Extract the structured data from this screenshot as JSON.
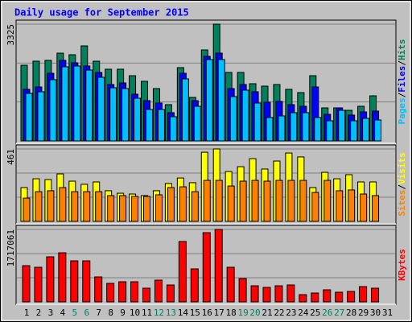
{
  "chart_data": [
    {
      "type": "bar",
      "title": "Daily usage for September 2015",
      "ylim": [
        0,
        3325
      ],
      "yticks": [
        3325
      ],
      "grid_divisions": 3,
      "legend_separator": "/",
      "series": [
        {
          "name": "Hits",
          "color": "#00805c",
          "values": [
            2155,
            2270,
            2293,
            2499,
            2454,
            2706,
            2270,
            2041,
            2041,
            1857,
            1697,
            1490,
            1032,
            2087,
            1238,
            2591,
            3325,
            1949,
            1949,
            1628,
            1559,
            1605,
            1468,
            1376,
            1857,
            940,
            940,
            871,
            986,
            1284,
            0
          ]
        },
        {
          "name": "Files",
          "color": "#0000ff",
          "values": [
            1468,
            1536,
            1926,
            2293,
            2224,
            2132,
            1949,
            1605,
            1651,
            1330,
            1146,
            1078,
            803,
            1926,
            1146,
            2408,
            2499,
            1490,
            1605,
            1399,
            1101,
            1124,
            1032,
            986,
            1536,
            757,
            940,
            734,
            825,
            848,
            0
          ]
        },
        {
          "name": "Pages",
          "color": "#00c0ff",
          "values": [
            1353,
            1399,
            1743,
            2110,
            2132,
            2018,
            1811,
            1513,
            1490,
            1215,
            894,
            894,
            688,
            1766,
            986,
            2316,
            2316,
            1261,
            1445,
            1078,
            665,
            711,
            803,
            803,
            665,
            573,
            871,
            573,
            642,
            596,
            0
          ]
        }
      ]
    },
    {
      "type": "bar",
      "ylim": [
        0,
        461
      ],
      "yticks": [
        461
      ],
      "grid_divisions": 3,
      "legend_separator": "/",
      "series": [
        {
          "name": "Visits",
          "color": "#ffff00",
          "values": [
            215,
            271,
            266,
            302,
            256,
            236,
            251,
            195,
            179,
            174,
            164,
            195,
            241,
            276,
            246,
            440,
            461,
            317,
            348,
            399,
            333,
            384,
            435,
            410,
            215,
            312,
            271,
            297,
            251,
            251,
            0
          ]
        },
        {
          "name": "Sites",
          "color": "#ff8000",
          "values": [
            148,
            189,
            195,
            215,
            189,
            189,
            189,
            164,
            164,
            159,
            159,
            169,
            215,
            220,
            189,
            261,
            261,
            225,
            256,
            261,
            256,
            261,
            261,
            261,
            184,
            261,
            195,
            200,
            174,
            164,
            0
          ]
        }
      ]
    },
    {
      "type": "bar",
      "ylim": [
        0,
        1717061
      ],
      "yticks": [
        1717061
      ],
      "grid_divisions": 3,
      "categories": [
        "1",
        "2",
        "3",
        "4",
        "5",
        "6",
        "7",
        "8",
        "9",
        "10",
        "11",
        "12",
        "13",
        "14",
        "15",
        "16",
        "17",
        "18",
        "19",
        "20",
        "21",
        "22",
        "23",
        "24",
        "25",
        "26",
        "27",
        "28",
        "29",
        "30",
        "31"
      ],
      "category_colors": [
        "#000",
        "#000",
        "#000",
        "#000",
        "#00805c",
        "#00805c",
        "#000",
        "#000",
        "#000",
        "#000",
        "#000",
        "#00805c",
        "#00805c",
        "#000",
        "#000",
        "#000",
        "#000",
        "#000",
        "#00805c",
        "#00805c",
        "#000",
        "#000",
        "#000",
        "#000",
        "#000",
        "#00805c",
        "#00805c",
        "#000",
        "#000",
        "#000",
        "#000"
      ],
      "series": [
        {
          "name": "KBytes",
          "color": "#ff0000",
          "values": [
            858510,
            820354,
            1068368,
            1163758,
            972978,
            972978,
            591418,
            438794,
            476950,
            476950,
            324326,
            515106,
            400638,
            1430850,
            782198,
            1640708,
            1717061,
            820354,
            553262,
            381560,
            343404,
            381560,
            400638,
            171702,
            209858,
            286170,
            228936,
            248014,
            362482,
            324326,
            0
          ]
        }
      ]
    }
  ]
}
